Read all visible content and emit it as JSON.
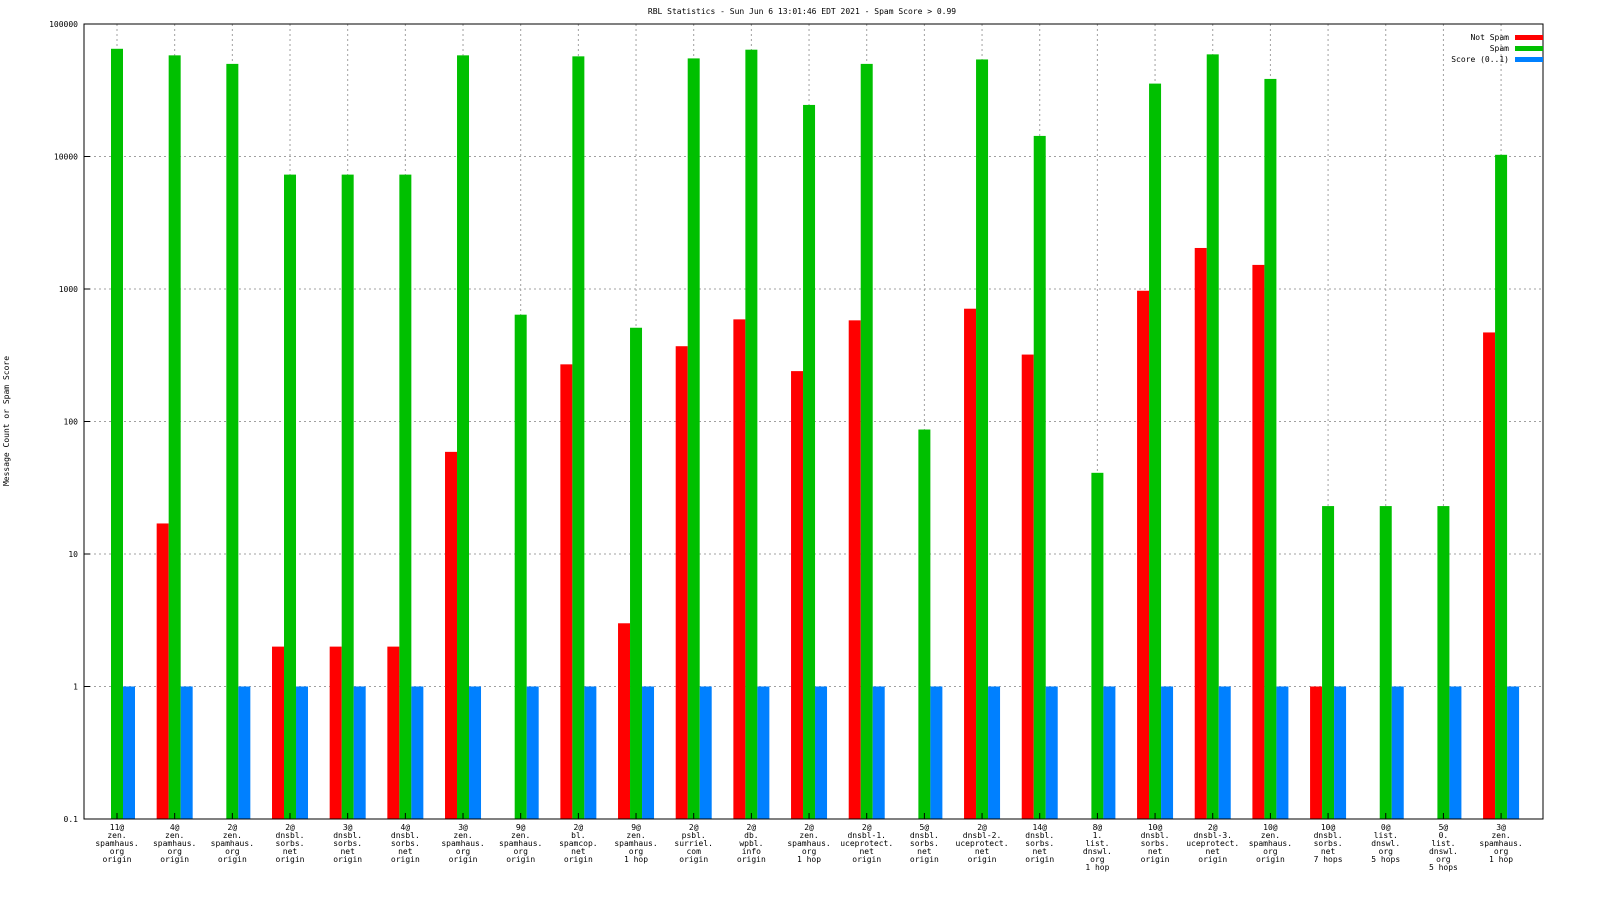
{
  "chart_data": {
    "type": "bar",
    "title": "RBL Statistics - Sun Jun  6 13:01:46 EDT 2021 - Spam Score > 0.99",
    "xlabel": "",
    "ylabel": "Message Count or Spam Score",
    "yscale": "log",
    "ylim": [
      0.1,
      100000
    ],
    "yticks": [
      "0.1",
      "1",
      "10",
      "100",
      "1000",
      "10000",
      "100000"
    ],
    "grid": true,
    "legend_position": "top-right",
    "categories": [
      [
        "11@",
        "zen.",
        "spamhaus.",
        "org",
        "origin"
      ],
      [
        "4@",
        "zen.",
        "spamhaus.",
        "org",
        "origin"
      ],
      [
        "2@",
        "zen.",
        "spamhaus.",
        "org",
        "origin"
      ],
      [
        "2@",
        "dnsbl.",
        "sorbs.",
        "net",
        "origin"
      ],
      [
        "3@",
        "dnsbl.",
        "sorbs.",
        "net",
        "origin"
      ],
      [
        "4@",
        "dnsbl.",
        "sorbs.",
        "net",
        "origin"
      ],
      [
        "3@",
        "zen.",
        "spamhaus.",
        "org",
        "origin"
      ],
      [
        "9@",
        "zen.",
        "spamhaus.",
        "org",
        "origin"
      ],
      [
        "2@",
        "bl.",
        "spamcop.",
        "net",
        "origin"
      ],
      [
        "9@",
        "zen.",
        "spamhaus.",
        "org",
        "1 hop"
      ],
      [
        "2@",
        "psbl.",
        "surriel.",
        "com",
        "origin"
      ],
      [
        "2@",
        "db.",
        "wpbl.",
        "info",
        "origin"
      ],
      [
        "2@",
        "zen.",
        "spamhaus.",
        "org",
        "1 hop"
      ],
      [
        "2@",
        "dnsbl-1.",
        "uceprotect.",
        "net",
        "origin"
      ],
      [
        "5@",
        "dnsbl.",
        "sorbs.",
        "net",
        "origin"
      ],
      [
        "2@",
        "dnsbl-2.",
        "uceprotect.",
        "net",
        "origin"
      ],
      [
        "14@",
        "dnsbl.",
        "sorbs.",
        "net",
        "origin"
      ],
      [
        "8@",
        "1.",
        "list.",
        "dnswl.",
        "org",
        "1 hop"
      ],
      [
        "10@",
        "dnsbl.",
        "sorbs.",
        "net",
        "origin"
      ],
      [
        "2@",
        "dnsbl-3.",
        "uceprotect.",
        "net",
        "origin"
      ],
      [
        "10@",
        "zen.",
        "spamhaus.",
        "org",
        "origin"
      ],
      [
        "10@",
        "dnsbl.",
        "sorbs.",
        "net",
        "7 hops"
      ],
      [
        "0@",
        "list.",
        "dnswl.",
        "org",
        "5 hops"
      ],
      [
        "5@",
        "0.",
        "list.",
        "dnswl.",
        "org",
        "5 hops"
      ],
      [
        "3@",
        "zen.",
        "spamhaus.",
        "org",
        "1 hop"
      ]
    ],
    "series": [
      {
        "name": "Not Spam",
        "color": "#ff0000",
        "values": [
          0,
          17,
          0,
          2,
          2,
          2,
          59,
          0,
          270,
          3,
          370,
          590,
          240,
          580,
          0,
          710,
          320,
          0,
          970,
          2040,
          1520,
          1,
          0,
          0,
          470
        ]
      },
      {
        "name": "Spam",
        "color": "#00c000",
        "values": [
          65000,
          58000,
          50000,
          7300,
          7300,
          7300,
          58000,
          640,
          57000,
          510,
          55000,
          64000,
          24500,
          50000,
          87,
          54000,
          14300,
          41,
          35500,
          59000,
          38500,
          23,
          23,
          23,
          10300
        ]
      },
      {
        "name": "Score (0..1)",
        "color": "#0080ff",
        "values": [
          1,
          1,
          1,
          1,
          1,
          1,
          1,
          1,
          1,
          1,
          1,
          1,
          1,
          1,
          1,
          1,
          1,
          1,
          1,
          1,
          1,
          1,
          1,
          1,
          1
        ]
      }
    ]
  }
}
